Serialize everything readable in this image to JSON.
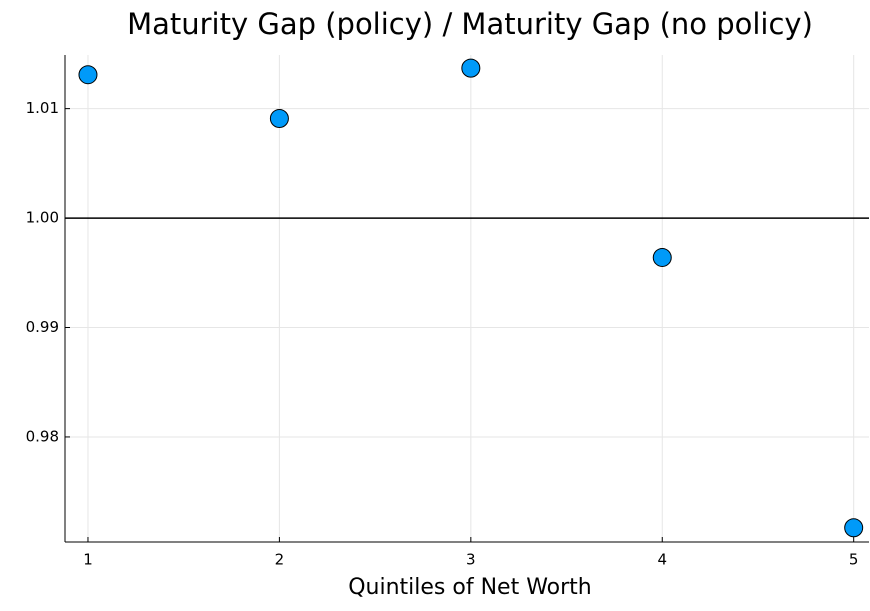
{
  "chart_data": {
    "type": "scatter",
    "title": "Maturity Gap (policy) / Maturity Gap (no policy)",
    "x_label": "Quintiles of Net Worth",
    "x": [
      1,
      2,
      3,
      4,
      5
    ],
    "series": [
      {
        "color": "#009af9",
        "values": [
          1.0131,
          1.0091,
          1.0137,
          0.9964,
          0.9717
        ]
      }
    ],
    "xlim": [
      0.88,
      5.08
    ],
    "xticks": [
      1,
      2,
      3,
      4,
      5
    ],
    "ylim": [
      0.9704,
      1.0149
    ],
    "yticks": [
      0.98,
      0.99,
      {
        "value": 1,
        "label": "1.00"
      },
      1.01
    ],
    "reference_line": 1,
    "grid": true
  }
}
